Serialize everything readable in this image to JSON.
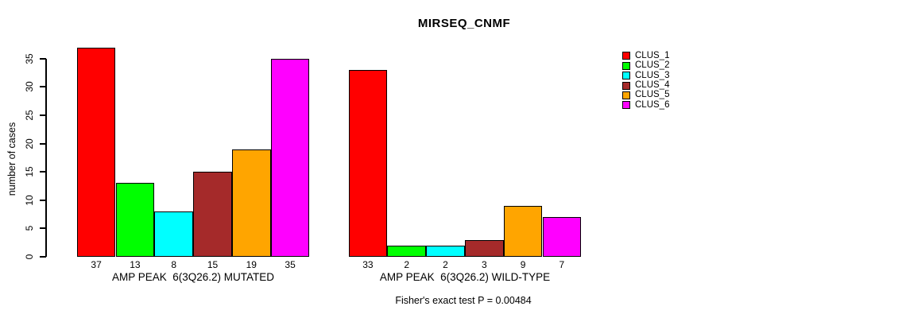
{
  "chart_data": {
    "type": "bar",
    "title": "MIRSEQ_CNMF",
    "ylabel": "number of cases",
    "ylim": [
      0,
      37
    ],
    "yticks": [
      0,
      5,
      10,
      15,
      20,
      25,
      30,
      35
    ],
    "grid": false,
    "bar_value_labels_shown": true,
    "series": [
      "CLUS_1",
      "CLUS_2",
      "CLUS_3",
      "CLUS_4",
      "CLUS_5",
      "CLUS_6"
    ],
    "series_colors": [
      "#FF0000",
      "#00FF00",
      "#00FFFF",
      "#A52A2A",
      "#FFA500",
      "#FF00FF"
    ],
    "groups": [
      {
        "label": "AMP PEAK  6(3Q26.2) MUTATED",
        "values": [
          37,
          13,
          8,
          15,
          19,
          35
        ]
      },
      {
        "label": "AMP PEAK  6(3Q26.2) WILD-TYPE",
        "values": [
          33,
          2,
          2,
          3,
          9,
          7
        ]
      }
    ],
    "legend": {
      "position": "right",
      "entries": [
        {
          "label": "CLUS_1",
          "color": "#FF0000"
        },
        {
          "label": "CLUS_2",
          "color": "#00FF00"
        },
        {
          "label": "CLUS_3",
          "color": "#00FFFF"
        },
        {
          "label": "CLUS_4",
          "color": "#A52A2A"
        },
        {
          "label": "CLUS_5",
          "color": "#FFA500"
        },
        {
          "label": "CLUS_6",
          "color": "#FF00FF"
        }
      ]
    },
    "footnote": "Fisher's exact test P = 0.00484"
  }
}
